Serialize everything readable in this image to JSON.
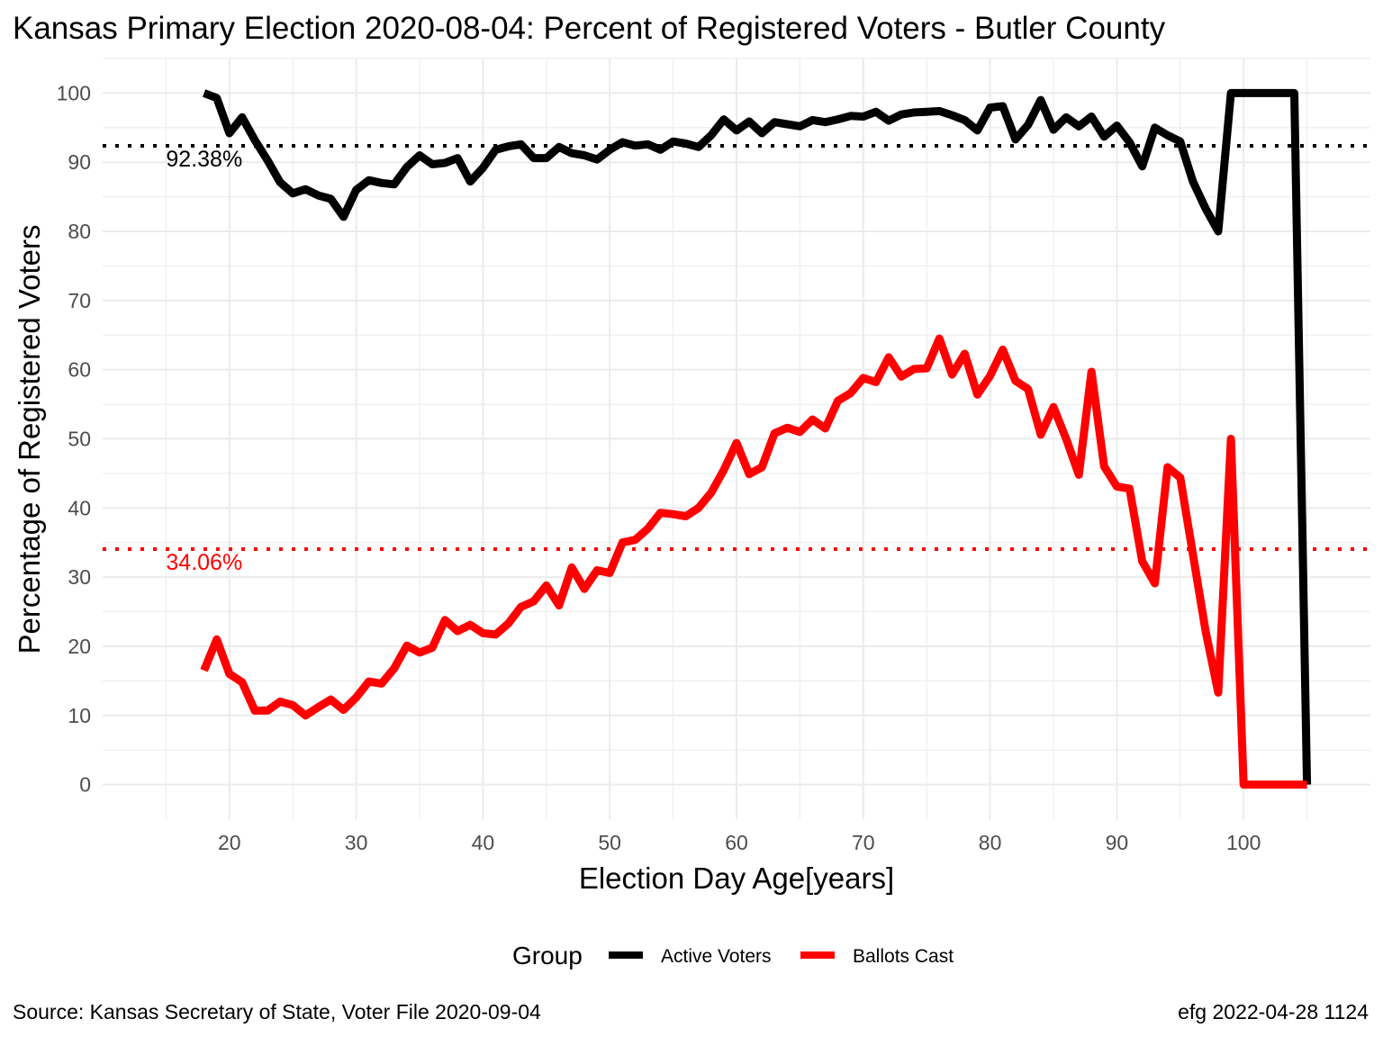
{
  "chart_data": {
    "type": "line",
    "title": "Kansas Primary Election 2020-08-04:  Percent of Registered Voters - Butler County",
    "xlabel": "Election Day Age[years]",
    "ylabel": "Percentage of Registered Voters",
    "xlim": [
      10,
      110
    ],
    "ylim": [
      -5,
      105
    ],
    "x_ticks": [
      20,
      30,
      40,
      50,
      60,
      70,
      80,
      90,
      100
    ],
    "y_ticks": [
      0,
      10,
      20,
      30,
      40,
      50,
      60,
      70,
      80,
      90,
      100
    ],
    "grid": true,
    "legend": {
      "title": "Group",
      "position": "bottom"
    },
    "x": [
      18,
      19,
      20,
      21,
      22,
      23,
      24,
      25,
      26,
      27,
      28,
      29,
      30,
      31,
      32,
      33,
      34,
      35,
      36,
      37,
      38,
      39,
      40,
      41,
      42,
      43,
      44,
      45,
      46,
      47,
      48,
      49,
      50,
      51,
      52,
      53,
      54,
      55,
      56,
      57,
      58,
      59,
      60,
      61,
      62,
      63,
      64,
      65,
      66,
      67,
      68,
      69,
      70,
      71,
      72,
      73,
      74,
      75,
      76,
      77,
      78,
      79,
      80,
      81,
      82,
      83,
      84,
      85,
      86,
      87,
      88,
      89,
      90,
      91,
      92,
      93,
      94,
      95,
      96,
      97,
      98,
      99,
      100,
      101,
      102,
      103,
      104,
      105
    ],
    "series": [
      {
        "name": "Active Voters",
        "color": "#000000",
        "values": [
          100,
          99.3,
          94.2,
          96.5,
          93.2,
          90.3,
          87.1,
          85.5,
          86.1,
          85.2,
          84.7,
          82.1,
          86.0,
          87.4,
          87.0,
          86.8,
          89.3,
          91.0,
          89.7,
          89.9,
          90.6,
          87.2,
          89.2,
          91.8,
          92.3,
          92.6,
          90.6,
          90.6,
          92.2,
          91.3,
          91.0,
          90.4,
          91.8,
          92.9,
          92.4,
          92.6,
          91.8,
          93.0,
          92.7,
          92.2,
          93.9,
          96.2,
          94.6,
          95.9,
          94.2,
          95.8,
          95.5,
          95.2,
          96.1,
          95.8,
          96.2,
          96.7,
          96.6,
          97.3,
          96.0,
          96.9,
          97.2,
          97.3,
          97.4,
          96.8,
          96.1,
          94.6,
          97.9,
          98.1,
          93.3,
          95.4,
          99.0,
          94.7,
          96.5,
          95.2,
          96.6,
          93.7,
          95.3,
          92.9,
          89.4,
          95.0,
          93.9,
          93.0,
          87.2,
          83.3,
          80.0,
          100,
          100,
          100,
          100,
          100,
          100,
          0
        ]
      },
      {
        "name": "Ballots Cast",
        "color": "#ff0000",
        "values": [
          16.5,
          21.0,
          16.0,
          14.8,
          10.7,
          10.7,
          12.0,
          11.5,
          10.0,
          11.2,
          12.3,
          10.8,
          12.6,
          14.9,
          14.6,
          16.8,
          20.1,
          19.1,
          19.8,
          23.8,
          22.2,
          23.1,
          21.9,
          21.7,
          23.3,
          25.7,
          26.5,
          28.8,
          25.9,
          31.4,
          28.3,
          31.0,
          30.6,
          35.0,
          35.4,
          37.0,
          39.3,
          39.1,
          38.8,
          40.0,
          42.2,
          45.5,
          49.4,
          44.9,
          45.9,
          50.8,
          51.6,
          51.0,
          52.8,
          51.5,
          55.5,
          56.6,
          58.8,
          58.2,
          61.8,
          59.0,
          60.1,
          60.2,
          64.5,
          59.3,
          62.3,
          56.4,
          59.1,
          62.9,
          58.4,
          57.2,
          50.6,
          54.6,
          50.0,
          44.8,
          59.7,
          46.0,
          43.1,
          42.8,
          32.3,
          29.1,
          45.9,
          44.4,
          33.3,
          22.2,
          13.3,
          50.0,
          0,
          0,
          0,
          0,
          0,
          0
        ]
      }
    ],
    "reference_lines": [
      {
        "y": 92.38,
        "label": "92.38%",
        "color": "#000000"
      },
      {
        "y": 34.06,
        "label": "34.06%",
        "color": "#ff0000"
      }
    ]
  },
  "caption": {
    "source": "Source:  Kansas Secretary of State, Voter File  2020-09-04",
    "credit": "efg 2022-04-28 1124"
  }
}
